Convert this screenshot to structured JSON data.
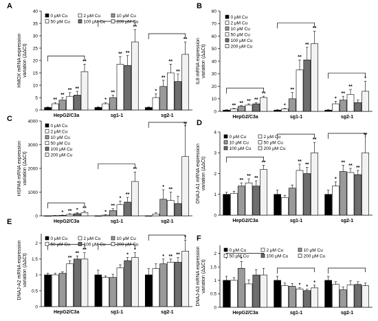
{
  "series_styles": {
    "0 μM Cu": {
      "fill": "#000000",
      "stroke": "#000000"
    },
    "2 μM Cu": {
      "fill": "#ffffff",
      "stroke": "#000000"
    },
    "10 μM Cu": {
      "fill": "#9a9a9a",
      "stroke": "#000000"
    },
    "50 μM Cu": {
      "fill": "#ffffff",
      "stroke": "#000000"
    },
    "100 μM Cu": {
      "fill": "#6e6e6e",
      "stroke": "#000000"
    },
    "200 μM Cu": {
      "fill": "#f2f2f2",
      "stroke": "#000000"
    }
  },
  "chart_data": [
    {
      "panel": "A",
      "type": "bar",
      "ylabel": "HMOX mRNA expression variation (ΔΔCt)",
      "yticks": [
        0,
        5,
        10,
        15,
        20,
        25,
        30,
        35,
        40
      ],
      "ylim": [
        0,
        40
      ],
      "categories": [
        "HepG2/C3a",
        "sg1-1",
        "sg2-1"
      ],
      "legend": {
        "items": [
          "0 μM Cu",
          "2 μM Cu",
          "10 μM Cu",
          "50 μM Cu",
          "100 μM Cu",
          "200 μM Cu"
        ],
        "columns": 3
      },
      "series": [
        {
          "name": "0 μM Cu",
          "values": [
            1,
            1,
            1
          ],
          "errors": [
            0.2,
            0.3,
            0.2
          ],
          "stars": [
            "",
            "",
            ""
          ]
        },
        {
          "name": "2 μM Cu",
          "values": [
            2.5,
            2.5,
            5
          ],
          "errors": [
            0.5,
            0.5,
            1.5
          ],
          "stars": [
            "**",
            "*",
            "*"
          ]
        },
        {
          "name": "10 μM Cu",
          "values": [
            4,
            5,
            9.5
          ],
          "errors": [
            1,
            1,
            2.5
          ],
          "stars": [
            "**",
            "**",
            "**"
          ]
        },
        {
          "name": "50 μM Cu",
          "values": [
            5.5,
            18.5,
            15
          ],
          "errors": [
            1.5,
            3,
            3.5
          ],
          "stars": [
            "**",
            "**",
            "**"
          ]
        },
        {
          "name": "100 μM Cu",
          "values": [
            6,
            18,
            11.5
          ],
          "errors": [
            1.5,
            4,
            3
          ],
          "stars": [
            "**",
            "**",
            "**"
          ]
        },
        {
          "name": "200 μM Cu",
          "values": [
            15.5,
            27.5,
            22.5
          ],
          "errors": [
            3,
            5,
            5
          ],
          "stars": [
            "**",
            "**",
            "**"
          ]
        }
      ]
    },
    {
      "panel": "B",
      "type": "bar",
      "ylabel": "IL8 mRNA expression variation (ΔΔCt)",
      "yticks": [
        0,
        10,
        20,
        30,
        40,
        50,
        60,
        70,
        80
      ],
      "ylim": [
        0,
        80
      ],
      "categories": [
        "HepG2/C3a",
        "sg1-1",
        "sg2-1"
      ],
      "legend": {
        "items": [
          "0 μM Cu",
          "2 μM Cu",
          "10 μM Cu",
          "50 μM Cu",
          "100 μM Cu",
          "200 μM Cu"
        ],
        "columns": 1
      },
      "series": [
        {
          "name": "0 μM Cu",
          "values": [
            1,
            1,
            1
          ],
          "errors": [
            0.3,
            0.3,
            0.3
          ],
          "stars": [
            "",
            "",
            ""
          ]
        },
        {
          "name": "2 μM Cu",
          "values": [
            2,
            2,
            6
          ],
          "errors": [
            0.5,
            0.5,
            2
          ],
          "stars": [
            "**",
            "*",
            "*"
          ]
        },
        {
          "name": "10 μM Cu",
          "values": [
            4,
            10,
            9
          ],
          "errors": [
            0.5,
            5,
            3
          ],
          "stars": [
            "**",
            "**",
            "**"
          ]
        },
        {
          "name": "50 μM Cu",
          "values": [
            5,
            33,
            13.5
          ],
          "errors": [
            1,
            8,
            4
          ],
          "stars": [
            "**",
            "**",
            "**"
          ]
        },
        {
          "name": "100 μM Cu",
          "values": [
            6,
            41,
            7
          ],
          "errors": [
            1,
            10,
            2
          ],
          "stars": [
            "**",
            "**",
            ""
          ]
        },
        {
          "name": "200 μM Cu",
          "values": [
            11,
            54,
            16
          ],
          "errors": [
            1,
            10,
            8
          ],
          "stars": [
            "**",
            "**",
            "*"
          ]
        }
      ]
    },
    {
      "panel": "C",
      "type": "bar",
      "ylabel": "HSPA6 mRNA expression variation (ΔΔCt)",
      "yticks": [
        0,
        1000,
        2000,
        3000,
        4000
      ],
      "ylim": [
        0,
        4000
      ],
      "categories": [
        "HepG2/C3a",
        "sg1-1",
        "sg2-1"
      ],
      "legend": {
        "items": [
          "0 μM Cu",
          "2 μM Cu",
          "10 μM Cu",
          "50 μM Cu",
          "100 μM Cu",
          "200 μM Cu"
        ],
        "columns": 1
      },
      "series": [
        {
          "name": "0 μM Cu",
          "values": [
            1,
            1,
            1
          ],
          "errors": [
            0,
            0,
            0
          ],
          "stars": [
            "",
            "",
            ""
          ]
        },
        {
          "name": "2 μM Cu",
          "values": [
            10,
            30,
            80
          ],
          "errors": [
            5,
            20,
            60
          ],
          "stars": [
            "",
            "*",
            ""
          ]
        },
        {
          "name": "10 μM Cu",
          "values": [
            20,
            220,
            700
          ],
          "errors": [
            10,
            80,
            400
          ],
          "stars": [
            "*",
            "**",
            "*"
          ]
        },
        {
          "name": "50 μM Cu",
          "values": [
            60,
            470,
            650
          ],
          "errors": [
            30,
            150,
            350
          ],
          "stars": [
            "**",
            "*",
            "**"
          ]
        },
        {
          "name": "100 μM Cu",
          "values": [
            90,
            580,
            520
          ],
          "errors": [
            40,
            200,
            300
          ],
          "stars": [
            "*",
            "**",
            ""
          ]
        },
        {
          "name": "200 μM Cu",
          "values": [
            140,
            1450,
            2500
          ],
          "errors": [
            60,
            400,
            1300
          ],
          "stars": [
            "**",
            "**",
            "**"
          ]
        }
      ]
    },
    {
      "panel": "D",
      "type": "bar",
      "ylabel": "DNAJ-A1 mRNA expression variation (ΔΔCt)",
      "yticks": [
        0,
        1,
        2,
        3,
        4
      ],
      "ylim": [
        0,
        4
      ],
      "categories": [
        "HepG2/C3a",
        "sg1-1",
        "sg2-1"
      ],
      "legend": {
        "items": [
          "0 μM Cu",
          "2 μM Cu",
          "10 μM Cu",
          "50 μM Cu",
          "100 μM Cu",
          "200 μM Cu"
        ],
        "columns": 2
      },
      "series": [
        {
          "name": "0 μM Cu",
          "values": [
            1,
            1,
            1
          ],
          "errors": [
            0.1,
            0.2,
            0.2
          ],
          "stars": [
            "",
            "",
            ""
          ]
        },
        {
          "name": "2 μM Cu",
          "values": [
            1.05,
            0.85,
            1.4
          ],
          "errors": [
            0.1,
            0.1,
            0.2
          ],
          "stars": [
            "",
            "",
            "*"
          ]
        },
        {
          "name": "10 μM Cu",
          "values": [
            1.4,
            1.3,
            2.1
          ],
          "errors": [
            0.15,
            0.15,
            0.3
          ],
          "stars": [
            "**",
            "",
            "**"
          ]
        },
        {
          "name": "50 μM Cu",
          "values": [
            1.55,
            2.15,
            2.05
          ],
          "errors": [
            0.2,
            0.3,
            0.2
          ],
          "stars": [
            "**",
            "**",
            "**"
          ]
        },
        {
          "name": "100 μM Cu",
          "values": [
            1.4,
            2,
            1.95
          ],
          "errors": [
            0.25,
            0.3,
            0.2
          ],
          "stars": [
            "**",
            "**",
            "**"
          ]
        },
        {
          "name": "200 μM Cu",
          "values": [
            2.2,
            3,
            3
          ],
          "errors": [
            0.2,
            0.5,
            0.9
          ],
          "stars": [
            "**",
            "**",
            "**"
          ]
        }
      ]
    },
    {
      "panel": "E",
      "type": "bar",
      "ylabel": "DNAJ-A2 mRNA expression variation (ΔΔCt)",
      "yticks": [
        0,
        0.5,
        1,
        1.5,
        2
      ],
      "ylim": [
        0,
        2.3
      ],
      "categories": [
        "HepG2/C3a",
        "sg1-1",
        "sg2-1"
      ],
      "legend": {
        "items": [
          "0 μM Cu",
          "2 μM Cu",
          "10 μM Cu",
          "50 μM Cu",
          "100 μM Cu",
          "200 μM Cu"
        ],
        "columns": 3
      },
      "series": [
        {
          "name": "0 μM Cu",
          "values": [
            1,
            1,
            1
          ],
          "errors": [
            0.05,
            0.15,
            0.2
          ],
          "stars": [
            "",
            "",
            ""
          ]
        },
        {
          "name": "2 μM Cu",
          "values": [
            1,
            0.92,
            1.2
          ],
          "errors": [
            0.05,
            0.05,
            0.15
          ],
          "stars": [
            "",
            "",
            ""
          ]
        },
        {
          "name": "10 μM Cu",
          "values": [
            1.05,
            0.92,
            1.35
          ],
          "errors": [
            0.05,
            0.1,
            0.15
          ],
          "stars": [
            "",
            "",
            "*"
          ]
        },
        {
          "name": "50 μM Cu",
          "values": [
            1.35,
            1.22,
            1.4
          ],
          "errors": [
            0.1,
            0.1,
            0.1
          ],
          "stars": [
            "**",
            "",
            "**"
          ]
        },
        {
          "name": "100 μM Cu",
          "values": [
            1.5,
            1.45,
            1.4
          ],
          "errors": [
            0.1,
            0.1,
            0.15
          ],
          "stars": [
            "**",
            "*",
            "**"
          ]
        },
        {
          "name": "200 μM Cu",
          "values": [
            1.5,
            1.55,
            1.75
          ],
          "errors": [
            0.2,
            0.15,
            0.35
          ],
          "stars": [
            "**",
            "*",
            "*"
          ]
        }
      ]
    },
    {
      "panel": "F",
      "type": "bar",
      "ylabel": "DNAJ-A3 mRNA expression variation (ΔΔCt)",
      "yticks": [
        0,
        0.5,
        1,
        1.5,
        2
      ],
      "ylim": [
        0,
        2.3
      ],
      "categories": [
        "HepG2/C3a",
        "sg1-1",
        "sg2-1"
      ],
      "legend": {
        "items": [
          "0 μM Cu",
          "2 μM Cu",
          "10 μM Cu",
          "50 μM Cu",
          "100 μM Cu",
          "200 μM Cu"
        ],
        "columns": 3
      },
      "series": [
        {
          "name": "0 μM Cu",
          "values": [
            1,
            1,
            1
          ],
          "errors": [
            0.15,
            0.15,
            0.15
          ],
          "stars": [
            "",
            "",
            ""
          ]
        },
        {
          "name": "2 μM Cu",
          "values": [
            1,
            0.8,
            0.85
          ],
          "errors": [
            0.1,
            0.1,
            0.1
          ],
          "stars": [
            "",
            "",
            ""
          ]
        },
        {
          "name": "10 μM Cu",
          "values": [
            1.45,
            0.78,
            0.65
          ],
          "errors": [
            0.25,
            0.1,
            0.1
          ],
          "stars": [
            "*",
            "",
            ""
          ]
        },
        {
          "name": "50 μM Cu",
          "values": [
            0.87,
            0.68,
            0.83
          ],
          "errors": [
            0.15,
            0.05,
            0.15
          ],
          "stars": [
            "",
            "*",
            ""
          ]
        },
        {
          "name": "100 μM Cu",
          "values": [
            1.2,
            0.62,
            0.85
          ],
          "errors": [
            0.2,
            0.05,
            0.1
          ],
          "stars": [
            "",
            "*",
            ""
          ]
        },
        {
          "name": "200 μM Cu",
          "values": [
            1.2,
            0.72,
            0.8
          ],
          "errors": [
            0.25,
            0.1,
            0.1
          ],
          "stars": [
            "",
            "*",
            ""
          ]
        }
      ]
    }
  ]
}
